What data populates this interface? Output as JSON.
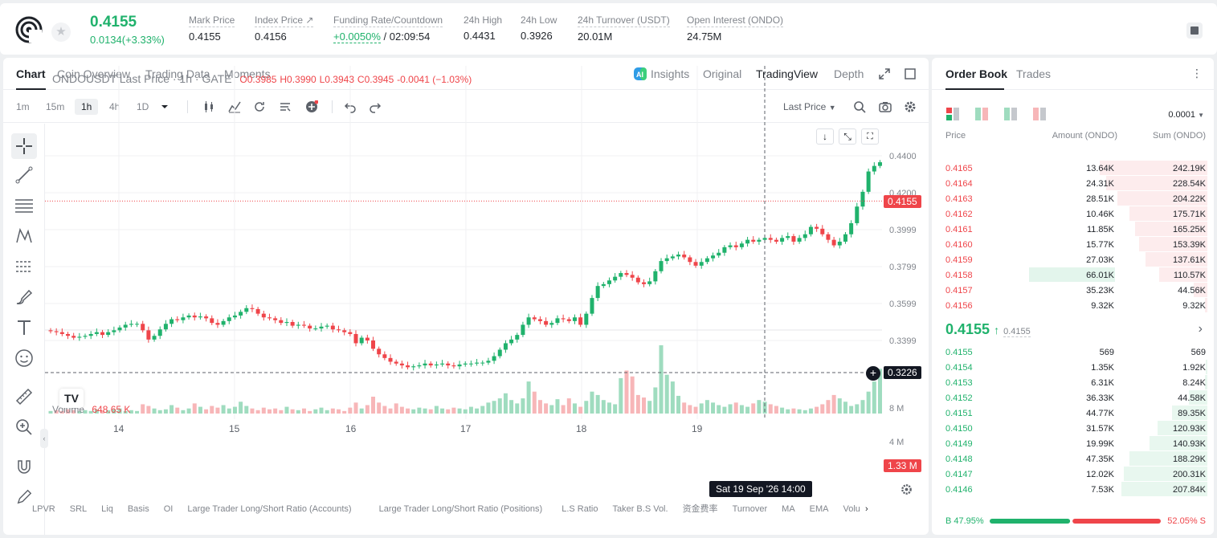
{
  "ticker": {
    "last_price": "0.4155",
    "change": "0.0134(+3.33%)",
    "stats": [
      {
        "label": "Mark Price",
        "value": "0.4155"
      },
      {
        "label": "Index Price ↗",
        "value": "0.4156"
      },
      {
        "label": "Funding Rate/Countdown",
        "value": "+0.0050%",
        "value2": " / 02:09:54"
      },
      {
        "label": "24h High",
        "value": "0.4431"
      },
      {
        "label": "24h Low",
        "value": "0.3926"
      },
      {
        "label": "24h Turnover (USDT)",
        "value": "20.01M"
      },
      {
        "label": "Open Interest (ONDO)",
        "value": "24.75M"
      }
    ]
  },
  "chart_tabs": [
    "Chart",
    "Coin Overview",
    "Trading Data",
    "Moments"
  ],
  "view_tabs": {
    "insights": "Insights",
    "original": "Original",
    "tradingview": "TradingView",
    "depth": "Depth"
  },
  "timeframes": [
    "1m",
    "15m",
    "1h",
    "4h",
    "1D"
  ],
  "selected_timeframe": "1h",
  "price_type": "Last Price",
  "legend": {
    "symbol": "ONDOUSDT Last Price · 1h · GATE",
    "o": "O0.3985",
    "h": "H0.3990",
    "l": "L0.3943",
    "c": "C0.3945",
    "chg": "-0.0041 (−1.03%)",
    "volume_label": "Volume",
    "volume_value": "648.65 K"
  },
  "y_ticks": [
    "0.4400",
    "0.4200",
    "0.3999",
    "0.3799",
    "0.3599",
    "0.3399"
  ],
  "vol_ticks": [
    "8 M",
    "4 M"
  ],
  "labels": {
    "last": "0.4155",
    "cross": "0.3226",
    "volume": "1.33 M",
    "crosshair_date": "Sat 19 Sep '26   14:00"
  },
  "x_ticks": [
    "14",
    "15",
    "16",
    "17",
    "18",
    "19"
  ],
  "indicators": [
    "LPVR",
    "SRL",
    "Liq",
    "Basis",
    "OI",
    "Large Trader Long/Short Ratio (Accounts)",
    "Large Trader Long/Short Ratio (Positions)",
    "L.S Ratio",
    "Taker B.S Vol.",
    "资金费率",
    "Turnover",
    "MA",
    "EMA",
    "Volu"
  ],
  "chart_data": {
    "type": "candlestick",
    "symbol": "ONDOUSDT",
    "interval": "1h",
    "x_ticks": [
      "14",
      "15",
      "16",
      "17",
      "18",
      "19"
    ],
    "ylim": [
      0.323,
      0.445
    ],
    "closes": [
      0.345,
      0.3445,
      0.3435,
      0.3425,
      0.3415,
      0.342,
      0.3425,
      0.3435,
      0.3445,
      0.343,
      0.3445,
      0.3455,
      0.347,
      0.3485,
      0.349,
      0.349,
      0.3455,
      0.3405,
      0.3425,
      0.346,
      0.349,
      0.3515,
      0.351,
      0.3525,
      0.3535,
      0.3525,
      0.353,
      0.352,
      0.3495,
      0.3485,
      0.3505,
      0.3525,
      0.3535,
      0.3555,
      0.3575,
      0.357,
      0.3545,
      0.3525,
      0.352,
      0.351,
      0.3495,
      0.35,
      0.348,
      0.3485,
      0.348,
      0.3465,
      0.3465,
      0.3475,
      0.348,
      0.346,
      0.3455,
      0.3445,
      0.3435,
      0.3385,
      0.3415,
      0.34,
      0.3355,
      0.3325,
      0.3305,
      0.3285,
      0.3275,
      0.3265,
      0.3255,
      0.326,
      0.3265,
      0.3275,
      0.3265,
      0.327,
      0.3275,
      0.3265,
      0.326,
      0.327,
      0.3275,
      0.3275,
      0.328,
      0.328,
      0.329,
      0.3315,
      0.335,
      0.3385,
      0.3405,
      0.343,
      0.3485,
      0.3525,
      0.3515,
      0.3505,
      0.3485,
      0.3495,
      0.352,
      0.3515,
      0.3505,
      0.3525,
      0.3485,
      0.3545,
      0.363,
      0.3695,
      0.3705,
      0.3725,
      0.3745,
      0.3765,
      0.3755,
      0.374,
      0.3715,
      0.3705,
      0.372,
      0.3775,
      0.383,
      0.3845,
      0.3855,
      0.3865,
      0.385,
      0.3825,
      0.3805,
      0.3825,
      0.3845,
      0.386,
      0.3875,
      0.3905,
      0.3915,
      0.3905,
      0.3925,
      0.3945,
      0.3935,
      0.3945,
      0.3955,
      0.3945,
      0.3935,
      0.3955,
      0.3965,
      0.3935,
      0.3955,
      0.3975,
      0.4015,
      0.4005,
      0.3975,
      0.3945,
      0.3915,
      0.3935,
      0.3975,
      0.4035,
      0.4125,
      0.4205,
      0.4315,
      0.4345,
      0.4365,
      0.4335,
      0.4305,
      0.4225,
      0.4155
    ],
    "volumes": [
      0.3,
      0.4,
      0.3,
      0.5,
      0.4,
      0.3,
      0.4,
      0.3,
      0.5,
      0.3,
      0.4,
      0.5,
      0.6,
      0.3,
      0.4,
      0.3,
      1.1,
      0.9,
      0.6,
      0.4,
      0.5,
      1.0,
      0.7,
      0.4,
      0.6,
      1.2,
      0.8,
      0.5,
      0.9,
      0.7,
      1.0,
      0.6,
      0.8,
      1.4,
      0.9,
      0.6,
      0.4,
      0.7,
      0.5,
      0.6,
      0.4,
      0.8,
      0.5,
      0.4,
      0.6,
      0.3,
      0.5,
      0.7,
      0.4,
      0.6,
      0.5,
      0.3,
      0.7,
      1.3,
      0.6,
      1.0,
      2.0,
      1.3,
      0.9,
      0.6,
      1.2,
      0.8,
      0.6,
      0.5,
      0.7,
      0.6,
      0.5,
      0.9,
      0.6,
      0.5,
      0.7,
      0.6,
      0.5,
      0.8,
      0.6,
      0.9,
      1.3,
      1.5,
      1.8,
      2.4,
      1.6,
      1.2,
      1.8,
      3.8,
      2.6,
      1.6,
      1.2,
      1.0,
      1.7,
      1.0,
      1.8,
      1.2,
      0.8,
      1.5,
      2.6,
      2.2,
      1.6,
      1.3,
      1.1,
      4.2,
      5.1,
      4.4,
      2.2,
      1.9,
      1.5,
      3.1,
      8.1,
      4.6,
      3.8,
      2.1,
      1.3,
      1.0,
      0.8,
      1.2,
      1.6,
      1.3,
      1.0,
      0.8,
      1.1,
      1.3,
      1.0,
      0.8,
      1.2,
      1.6,
      1.4,
      1.1,
      0.9,
      0.7,
      0.5,
      0.6,
      0.5,
      0.4,
      0.6,
      0.8,
      1.1,
      1.6,
      2.2,
      1.8,
      1.4,
      0.9,
      1.1,
      1.6,
      2.6,
      3.8,
      5.3,
      4.3,
      2.9,
      1.9,
      1.4,
      1.1
    ]
  },
  "orderbook": {
    "tabs": [
      "Order Book",
      "Trades"
    ],
    "precision": "0.0001",
    "headers": [
      "Price",
      "Amount (ONDO)",
      "Sum (ONDO)"
    ],
    "asks": [
      {
        "price": "0.4165",
        "amount": "13.64K",
        "sum": "242.19K",
        "depth": 0.4
      },
      {
        "price": "0.4164",
        "amount": "24.31K",
        "sum": "228.54K",
        "depth": 0.375
      },
      {
        "price": "0.4163",
        "amount": "28.51K",
        "sum": "204.22K",
        "depth": 0.335
      },
      {
        "price": "0.4162",
        "amount": "10.46K",
        "sum": "175.71K",
        "depth": 0.29
      },
      {
        "price": "0.4161",
        "amount": "11.85K",
        "sum": "165.25K",
        "depth": 0.27
      },
      {
        "price": "0.4160",
        "amount": "15.77K",
        "sum": "153.39K",
        "depth": 0.255
      },
      {
        "price": "0.4159",
        "amount": "27.03K",
        "sum": "137.61K",
        "depth": 0.23
      },
      {
        "price": "0.4158",
        "amount": "66.01K",
        "sum": "110.57K",
        "depth": 0.18
      },
      {
        "price": "0.4157",
        "amount": "35.23K",
        "sum": "44.56K",
        "depth": 0.05
      },
      {
        "price": "0.4156",
        "amount": "9.32K",
        "sum": "9.32K",
        "depth": 0.01
      }
    ],
    "mid": {
      "price": "0.4155",
      "arrow": "↑",
      "mark": "0.4155"
    },
    "bids": [
      {
        "price": "0.4155",
        "amount": "569",
        "sum": "569",
        "depth": 0.0
      },
      {
        "price": "0.4154",
        "amount": "1.35K",
        "sum": "1.92K",
        "depth": 0.005
      },
      {
        "price": "0.4153",
        "amount": "6.31K",
        "sum": "8.24K",
        "depth": 0.01
      },
      {
        "price": "0.4152",
        "amount": "36.33K",
        "sum": "44.58K",
        "depth": 0.07
      },
      {
        "price": "0.4151",
        "amount": "44.77K",
        "sum": "89.35K",
        "depth": 0.13
      },
      {
        "price": "0.4150",
        "amount": "31.57K",
        "sum": "120.93K",
        "depth": 0.185
      },
      {
        "price": "0.4149",
        "amount": "19.99K",
        "sum": "140.93K",
        "depth": 0.215
      },
      {
        "price": "0.4148",
        "amount": "47.35K",
        "sum": "188.29K",
        "depth": 0.29
      },
      {
        "price": "0.4147",
        "amount": "12.02K",
        "sum": "200.31K",
        "depth": 0.31
      },
      {
        "price": "0.4146",
        "amount": "7.53K",
        "sum": "207.84K",
        "depth": 0.32
      }
    ],
    "buy_ratio": "B 47.95%",
    "sell_ratio": "52.05% S",
    "buy_fraction": 0.4795
  }
}
